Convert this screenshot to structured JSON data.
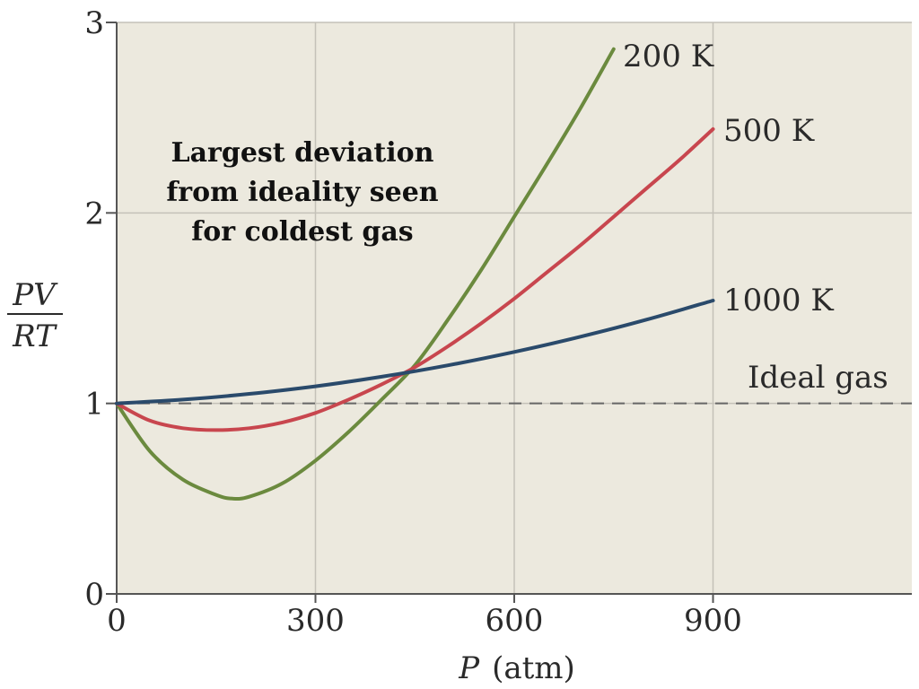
{
  "chart_data": {
    "type": "line",
    "xlabel_var": "P",
    "xlabel_unit": "(atm)",
    "ylabel_num": "PV",
    "ylabel_den": "RT",
    "xlim": [
      0,
      1200
    ],
    "ylim": [
      0,
      3
    ],
    "x_ticks": [
      0,
      300,
      600,
      900
    ],
    "y_ticks": [
      0,
      1,
      2,
      3
    ],
    "x_tick_labels": [
      "0",
      "300",
      "600",
      "900"
    ],
    "y_tick_labels": [
      "0",
      "1",
      "2",
      "3"
    ],
    "grid": true,
    "colors": {
      "background": "#ece9de",
      "grid": "#c4c1b8",
      "axis": "#555555",
      "ideal": "#666666"
    },
    "annotation_lines": [
      "Largest deviation",
      "from ideality seen",
      "for coldest gas"
    ],
    "reference_line": {
      "name": "Ideal gas",
      "y": 1
    },
    "series": [
      {
        "name": "200 K",
        "color": "#6b8a3e",
        "x": [
          0,
          50,
          100,
          150,
          175,
          200,
          250,
          300,
          350,
          400,
          450,
          500,
          550,
          600,
          650,
          700,
          750
        ],
        "y": [
          1.0,
          0.75,
          0.6,
          0.52,
          0.5,
          0.51,
          0.58,
          0.7,
          0.85,
          1.02,
          1.2,
          1.44,
          1.7,
          1.98,
          2.26,
          2.55,
          2.86
        ]
      },
      {
        "name": "500 K",
        "color": "#c8464e",
        "x": [
          0,
          50,
          100,
          150,
          200,
          250,
          300,
          350,
          400,
          450,
          500,
          550,
          600,
          650,
          700,
          750,
          800,
          850,
          900
        ],
        "y": [
          1.0,
          0.91,
          0.87,
          0.86,
          0.87,
          0.9,
          0.95,
          1.02,
          1.1,
          1.19,
          1.3,
          1.42,
          1.55,
          1.69,
          1.83,
          1.98,
          2.13,
          2.28,
          2.44
        ]
      },
      {
        "name": "1000 K",
        "color": "#2a4a6b",
        "x": [
          0,
          100,
          200,
          300,
          400,
          500,
          600,
          700,
          800,
          900
        ],
        "y": [
          1.0,
          1.02,
          1.05,
          1.09,
          1.14,
          1.2,
          1.27,
          1.35,
          1.44,
          1.54
        ]
      }
    ]
  }
}
